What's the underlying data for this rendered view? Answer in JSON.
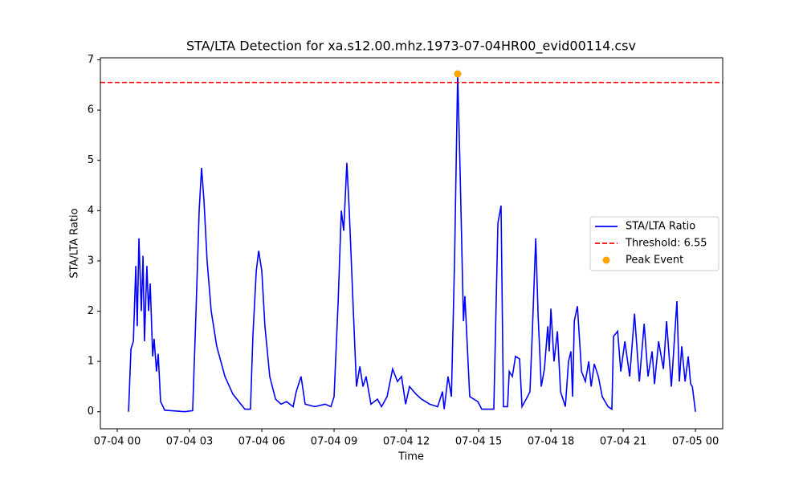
{
  "chart_data": {
    "type": "line",
    "title": "STA/LTA Detection for xa.s12.00.mhz.1973-07-04HR00_evid00114.csv",
    "x_label": "Time",
    "y_label": "STA/LTA Ratio",
    "x": [
      0.47,
      0.57,
      0.67,
      0.77,
      0.83,
      0.9,
      1.0,
      1.07,
      1.13,
      1.23,
      1.3,
      1.37,
      1.47,
      1.53,
      1.63,
      1.7,
      1.8,
      1.97,
      2.8,
      3.13,
      3.27,
      3.4,
      3.5,
      3.6,
      3.73,
      3.9,
      4.13,
      4.47,
      4.8,
      5.13,
      5.3,
      5.53,
      5.63,
      5.77,
      5.87,
      6.0,
      6.13,
      6.33,
      6.57,
      6.8,
      7.03,
      7.3,
      7.43,
      7.63,
      7.8,
      8.2,
      8.63,
      8.87,
      9.0,
      9.17,
      9.3,
      9.4,
      9.53,
      9.63,
      9.8,
      9.93,
      10.07,
      10.2,
      10.33,
      10.53,
      10.8,
      10.97,
      11.2,
      11.43,
      11.63,
      11.8,
      11.97,
      12.13,
      12.4,
      12.63,
      12.97,
      13.3,
      13.5,
      13.57,
      13.73,
      13.87,
      14.0,
      14.13,
      14.23,
      14.37,
      14.43,
      14.63,
      14.97,
      15.13,
      15.63,
      15.8,
      15.93,
      16.03,
      16.2,
      16.27,
      16.4,
      16.53,
      16.7,
      16.8,
      17.03,
      17.13,
      17.23,
      17.37,
      17.47,
      17.6,
      17.73,
      17.87,
      17.93,
      18.0,
      18.13,
      18.27,
      18.4,
      18.6,
      18.73,
      18.83,
      18.9,
      18.97,
      19.1,
      19.27,
      19.43,
      19.57,
      19.67,
      19.8,
      19.97,
      20.13,
      20.37,
      20.53,
      20.6,
      20.77,
      20.9,
      21.07,
      21.27,
      21.47,
      21.67,
      21.87,
      22.03,
      22.2,
      22.3,
      22.47,
      22.67,
      22.8,
      23.0,
      23.23,
      23.33,
      23.43,
      23.57,
      23.7,
      23.8,
      23.87,
      24.0
    ],
    "series": [
      {
        "name": "STA/LTA Ratio",
        "color": "#0000ff",
        "values": [
          0,
          1.25,
          1.4,
          2.9,
          1.7,
          3.45,
          2.0,
          3.1,
          1.4,
          2.9,
          2.0,
          2.55,
          1.1,
          1.45,
          0.8,
          1.15,
          0.2,
          0.03,
          0,
          0.02,
          2.0,
          4.0,
          4.85,
          4.2,
          3.0,
          2.0,
          1.3,
          0.7,
          0.35,
          0.15,
          0.05,
          0.05,
          1.5,
          2.8,
          3.2,
          2.8,
          1.7,
          0.7,
          0.25,
          0.15,
          0.2,
          0.1,
          0.4,
          0.7,
          0.15,
          0.1,
          0.15,
          0.1,
          0.3,
          2.2,
          4.0,
          3.6,
          4.95,
          4.0,
          2.0,
          0.5,
          0.9,
          0.5,
          0.7,
          0.15,
          0.25,
          0.1,
          0.3,
          0.85,
          0.6,
          0.7,
          0.15,
          0.5,
          0.35,
          0.25,
          0.15,
          0.1,
          0.4,
          0.05,
          0.7,
          0.3,
          3.0,
          6.72,
          4.8,
          1.8,
          2.3,
          0.3,
          0.2,
          0.05,
          0.05,
          3.75,
          4.1,
          0.1,
          0.1,
          0.8,
          0.7,
          1.1,
          1.05,
          0.1,
          0.3,
          0.4,
          1.6,
          3.45,
          1.9,
          0.5,
          0.85,
          1.7,
          1.2,
          2.05,
          1.0,
          1.6,
          0.4,
          0.1,
          1.0,
          1.2,
          0.3,
          1.8,
          2.1,
          0.8,
          0.6,
          1.0,
          0.5,
          0.95,
          0.7,
          0.3,
          0.1,
          0.05,
          1.5,
          1.6,
          0.8,
          1.4,
          0.7,
          1.95,
          0.6,
          1.75,
          0.7,
          1.2,
          0.55,
          1.4,
          0.85,
          1.8,
          0.5,
          2.2,
          0.6,
          1.3,
          0.6,
          1.1,
          0.55,
          0.5,
          0
        ]
      }
    ],
    "threshold": {
      "name": "Threshold: 6.55",
      "value": 6.55,
      "color": "#ff0000"
    },
    "peak": {
      "name": "Peak Event",
      "x": 14.13,
      "y": 6.72,
      "color": "#ffa500"
    },
    "xlim": [
      -0.7,
      25.13
    ],
    "ylim": [
      -0.34,
      7.04
    ],
    "xticks": [
      {
        "value": 0,
        "label": "07-04 00"
      },
      {
        "value": 3,
        "label": "07-04 03"
      },
      {
        "value": 6,
        "label": "07-04 06"
      },
      {
        "value": 9,
        "label": "07-04 09"
      },
      {
        "value": 12,
        "label": "07-04 12"
      },
      {
        "value": 15,
        "label": "07-04 15"
      },
      {
        "value": 18,
        "label": "07-04 18"
      },
      {
        "value": 21,
        "label": "07-04 21"
      },
      {
        "value": 24,
        "label": "07-05 00"
      }
    ],
    "yticks": [
      0,
      1,
      2,
      3,
      4,
      5,
      6,
      7
    ],
    "legend": "center right"
  }
}
